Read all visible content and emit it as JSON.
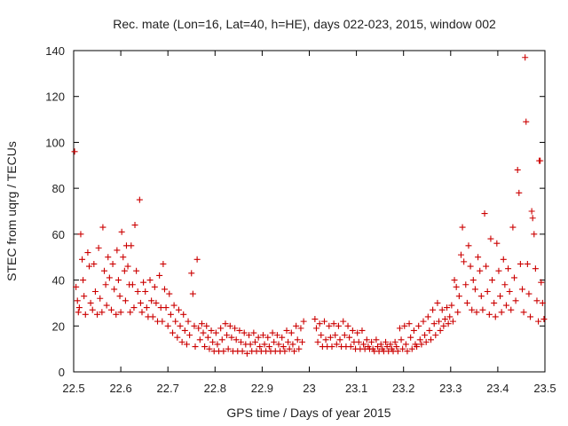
{
  "chart_data": {
    "type": "scatter",
    "title": "Rec. mate (Lon=16, Lat=40, h=HE), days 022-023, 2015, window 002",
    "xlabel": "GPS time / Days of year 2015",
    "ylabel": "STEC from uqrg / TECUs",
    "xlim": [
      22.5,
      23.5
    ],
    "ylim": [
      0,
      140
    ],
    "xticks": [
      22.5,
      22.6,
      22.7,
      22.8,
      22.9,
      23,
      23.1,
      23.2,
      23.3,
      23.4,
      23.5
    ],
    "xtick_labels": [
      "22.5",
      "22.6",
      "22.7",
      "22.8",
      "22.9",
      "23",
      "23.1",
      "23.2",
      "23.3",
      "23.4",
      "23.5"
    ],
    "yticks": [
      0,
      20,
      40,
      60,
      80,
      100,
      120,
      140
    ],
    "ytick_labels": [
      "0",
      "20",
      "40",
      "60",
      "80",
      "100",
      "120",
      "140"
    ],
    "marker_color": "#cc0000",
    "marker": "plus",
    "grid": false,
    "series": [
      {
        "name": "STEC",
        "points": [
          [
            22.502,
            96
          ],
          [
            22.505,
            37
          ],
          [
            22.508,
            31
          ],
          [
            22.51,
            26
          ],
          [
            22.512,
            28
          ],
          [
            22.515,
            60
          ],
          [
            22.518,
            49
          ],
          [
            22.52,
            40
          ],
          [
            22.522,
            33
          ],
          [
            22.525,
            25
          ],
          [
            22.53,
            52
          ],
          [
            22.533,
            46
          ],
          [
            22.536,
            30
          ],
          [
            22.54,
            27
          ],
          [
            22.543,
            47
          ],
          [
            22.546,
            35
          ],
          [
            22.55,
            25
          ],
          [
            22.553,
            54
          ],
          [
            22.556,
            32
          ],
          [
            22.56,
            26
          ],
          [
            22.562,
            63
          ],
          [
            22.565,
            44
          ],
          [
            22.568,
            38
          ],
          [
            22.57,
            29
          ],
          [
            22.573,
            50
          ],
          [
            22.576,
            41
          ],
          [
            22.58,
            27
          ],
          [
            22.583,
            47
          ],
          [
            22.586,
            36
          ],
          [
            22.59,
            25
          ],
          [
            22.592,
            53
          ],
          [
            22.595,
            40
          ],
          [
            22.598,
            33
          ],
          [
            22.6,
            26
          ],
          [
            22.602,
            61
          ],
          [
            22.605,
            50
          ],
          [
            22.608,
            44
          ],
          [
            22.61,
            31
          ],
          [
            22.612,
            55
          ],
          [
            22.615,
            46
          ],
          [
            22.618,
            38
          ],
          [
            22.62,
            26
          ],
          [
            22.622,
            55
          ],
          [
            22.625,
            38
          ],
          [
            22.628,
            28
          ],
          [
            22.63,
            64
          ],
          [
            22.633,
            44
          ],
          [
            22.636,
            35
          ],
          [
            22.64,
            75
          ],
          [
            22.642,
            30
          ],
          [
            22.645,
            26
          ],
          [
            22.648,
            39
          ],
          [
            22.652,
            35
          ],
          [
            22.655,
            28
          ],
          [
            22.658,
            24
          ],
          [
            22.662,
            40
          ],
          [
            22.665,
            31
          ],
          [
            22.668,
            24
          ],
          [
            22.672,
            37
          ],
          [
            22.675,
            30
          ],
          [
            22.678,
            22
          ],
          [
            22.682,
            42
          ],
          [
            22.685,
            28
          ],
          [
            22.688,
            22
          ],
          [
            22.69,
            47
          ],
          [
            22.693,
            36
          ],
          [
            22.696,
            28
          ],
          [
            22.7,
            20
          ],
          [
            22.703,
            34
          ],
          [
            22.706,
            25
          ],
          [
            22.71,
            17
          ],
          [
            22.713,
            29
          ],
          [
            22.716,
            22
          ],
          [
            22.72,
            15
          ],
          [
            22.723,
            27
          ],
          [
            22.726,
            20
          ],
          [
            22.73,
            13
          ],
          [
            22.733,
            25
          ],
          [
            22.736,
            18
          ],
          [
            22.74,
            12
          ],
          [
            22.743,
            22
          ],
          [
            22.746,
            16
          ],
          [
            22.75,
            43
          ],
          [
            22.753,
            34
          ],
          [
            22.756,
            20
          ],
          [
            22.758,
            11
          ],
          [
            22.762,
            49
          ],
          [
            22.765,
            19
          ],
          [
            22.768,
            14
          ],
          [
            22.772,
            21
          ],
          [
            22.775,
            17
          ],
          [
            22.778,
            11
          ],
          [
            22.782,
            20
          ],
          [
            22.785,
            15
          ],
          [
            22.788,
            10
          ],
          [
            22.792,
            18
          ],
          [
            22.795,
            13
          ],
          [
            22.798,
            9
          ],
          [
            22.802,
            17
          ],
          [
            22.805,
            12
          ],
          [
            22.808,
            9
          ],
          [
            22.812,
            19
          ],
          [
            22.815,
            14
          ],
          [
            22.818,
            9
          ],
          [
            22.822,
            21
          ],
          [
            22.825,
            16
          ],
          [
            22.828,
            10
          ],
          [
            22.832,
            20
          ],
          [
            22.835,
            15
          ],
          [
            22.838,
            9
          ],
          [
            22.842,
            19
          ],
          [
            22.845,
            14
          ],
          [
            22.848,
            9
          ],
          [
            22.852,
            18
          ],
          [
            22.855,
            13
          ],
          [
            22.858,
            9
          ],
          [
            22.862,
            17
          ],
          [
            22.865,
            12
          ],
          [
            22.868,
            8
          ],
          [
            22.872,
            16
          ],
          [
            22.875,
            12
          ],
          [
            22.878,
            9
          ],
          [
            22.882,
            17
          ],
          [
            22.885,
            13
          ],
          [
            22.888,
            9
          ],
          [
            22.892,
            15
          ],
          [
            22.895,
            11
          ],
          [
            22.898,
            9
          ],
          [
            22.902,
            16
          ],
          [
            22.905,
            12
          ],
          [
            22.908,
            9
          ],
          [
            22.912,
            15
          ],
          [
            22.915,
            11
          ],
          [
            22.918,
            9
          ],
          [
            22.922,
            17
          ],
          [
            22.925,
            13
          ],
          [
            22.928,
            9
          ],
          [
            22.932,
            16
          ],
          [
            22.935,
            12
          ],
          [
            22.938,
            9
          ],
          [
            22.942,
            15
          ],
          [
            22.945,
            11
          ],
          [
            22.948,
            9
          ],
          [
            22.952,
            18
          ],
          [
            22.955,
            13
          ],
          [
            22.958,
            10
          ],
          [
            22.962,
            17
          ],
          [
            22.965,
            12
          ],
          [
            22.968,
            9
          ],
          [
            22.972,
            20
          ],
          [
            22.975,
            14
          ],
          [
            22.978,
            10
          ],
          [
            22.982,
            19
          ],
          [
            22.985,
            13
          ],
          [
            22.988,
            22
          ],
          [
            23.012,
            23
          ],
          [
            23.015,
            19
          ],
          [
            23.018,
            13
          ],
          [
            23.022,
            21
          ],
          [
            23.025,
            16
          ],
          [
            23.028,
            11
          ],
          [
            23.032,
            22
          ],
          [
            23.035,
            14
          ],
          [
            23.038,
            11
          ],
          [
            23.042,
            20
          ],
          [
            23.045,
            15
          ],
          [
            23.048,
            11
          ],
          [
            23.052,
            21
          ],
          [
            23.055,
            16
          ],
          [
            23.058,
            12
          ],
          [
            23.062,
            20
          ],
          [
            23.065,
            14
          ],
          [
            23.068,
            11
          ],
          [
            23.072,
            22
          ],
          [
            23.075,
            16
          ],
          [
            23.078,
            11
          ],
          [
            23.082,
            20
          ],
          [
            23.085,
            15
          ],
          [
            23.088,
            11
          ],
          [
            23.092,
            18
          ],
          [
            23.095,
            13
          ],
          [
            23.098,
            10
          ],
          [
            23.102,
            17
          ],
          [
            23.105,
            13
          ],
          [
            23.108,
            10
          ],
          [
            23.112,
            18
          ],
          [
            23.115,
            12
          ],
          [
            23.118,
            10
          ],
          [
            23.122,
            14
          ],
          [
            23.125,
            11
          ],
          [
            23.128,
            10
          ],
          [
            23.132,
            13
          ],
          [
            23.135,
            10
          ],
          [
            23.138,
            9
          ],
          [
            23.142,
            14
          ],
          [
            23.145,
            11
          ],
          [
            23.148,
            9
          ],
          [
            23.152,
            12
          ],
          [
            23.155,
            10
          ],
          [
            23.158,
            9
          ],
          [
            23.162,
            13
          ],
          [
            23.165,
            11
          ],
          [
            23.168,
            9
          ],
          [
            23.172,
            12
          ],
          [
            23.175,
            10
          ],
          [
            23.178,
            9
          ],
          [
            23.182,
            13
          ],
          [
            23.185,
            11
          ],
          [
            23.188,
            9
          ],
          [
            23.192,
            19
          ],
          [
            23.195,
            14
          ],
          [
            23.198,
            10
          ],
          [
            23.202,
            20
          ],
          [
            23.205,
            12
          ],
          [
            23.208,
            9
          ],
          [
            23.212,
            21
          ],
          [
            23.215,
            15
          ],
          [
            23.218,
            10
          ],
          [
            23.222,
            18
          ],
          [
            23.225,
            12
          ],
          [
            23.228,
            11
          ],
          [
            23.232,
            20
          ],
          [
            23.235,
            14
          ],
          [
            23.238,
            12
          ],
          [
            23.242,
            22
          ],
          [
            23.245,
            16
          ],
          [
            23.248,
            13
          ],
          [
            23.252,
            24
          ],
          [
            23.255,
            18
          ],
          [
            23.258,
            14
          ],
          [
            23.262,
            27
          ],
          [
            23.265,
            21
          ],
          [
            23.268,
            16
          ],
          [
            23.272,
            30
          ],
          [
            23.275,
            22
          ],
          [
            23.278,
            18
          ],
          [
            23.282,
            27
          ],
          [
            23.285,
            20
          ],
          [
            23.288,
            23
          ],
          [
            23.292,
            28
          ],
          [
            23.295,
            21
          ],
          [
            23.298,
            24
          ],
          [
            23.302,
            29
          ],
          [
            23.305,
            22
          ],
          [
            23.308,
            40
          ],
          [
            23.312,
            37
          ],
          [
            23.315,
            26
          ],
          [
            23.318,
            33
          ],
          [
            23.322,
            51
          ],
          [
            23.325,
            63
          ],
          [
            23.328,
            48
          ],
          [
            23.332,
            38
          ],
          [
            23.335,
            30
          ],
          [
            23.338,
            55
          ],
          [
            23.342,
            46
          ],
          [
            23.345,
            27
          ],
          [
            23.348,
            40
          ],
          [
            23.352,
            36
          ],
          [
            23.355,
            26
          ],
          [
            23.358,
            50
          ],
          [
            23.362,
            44
          ],
          [
            23.365,
            33
          ],
          [
            23.368,
            27
          ],
          [
            23.372,
            69
          ],
          [
            23.375,
            46
          ],
          [
            23.378,
            35
          ],
          [
            23.382,
            25
          ],
          [
            23.385,
            58
          ],
          [
            23.388,
            40
          ],
          [
            23.392,
            30
          ],
          [
            23.395,
            24
          ],
          [
            23.398,
            56
          ],
          [
            23.402,
            44
          ],
          [
            23.405,
            33
          ],
          [
            23.408,
            26
          ],
          [
            23.412,
            49
          ],
          [
            23.415,
            38
          ],
          [
            23.418,
            29
          ],
          [
            23.422,
            45
          ],
          [
            23.425,
            35
          ],
          [
            23.428,
            27
          ],
          [
            23.432,
            63
          ],
          [
            23.435,
            41
          ],
          [
            23.438,
            31
          ],
          [
            23.442,
            88
          ],
          [
            23.445,
            78
          ],
          [
            23.448,
            47
          ],
          [
            23.452,
            36
          ],
          [
            23.455,
            26
          ],
          [
            23.458,
            137
          ],
          [
            23.46,
            109
          ],
          [
            23.463,
            47
          ],
          [
            23.466,
            34
          ],
          [
            23.469,
            24
          ],
          [
            23.472,
            70
          ],
          [
            23.474,
            67
          ],
          [
            23.477,
            60
          ],
          [
            23.48,
            45
          ],
          [
            23.483,
            31
          ],
          [
            23.486,
            22
          ],
          [
            23.488,
            92
          ],
          [
            23.49,
            92
          ],
          [
            23.492,
            39
          ],
          [
            23.495,
            30
          ],
          [
            23.498,
            23
          ]
        ]
      }
    ]
  }
}
